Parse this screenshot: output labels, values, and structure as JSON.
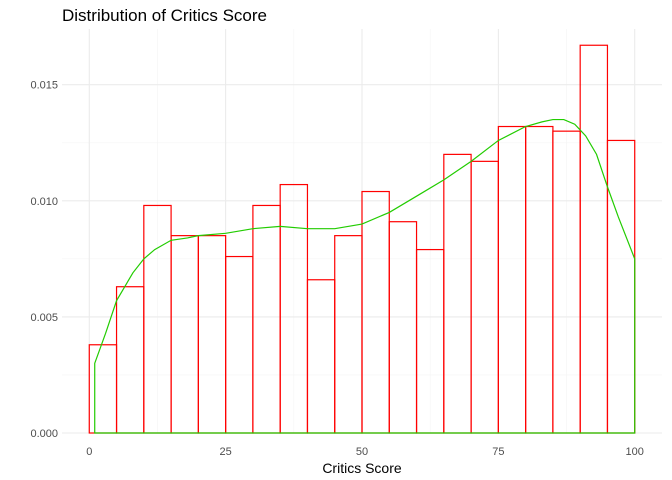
{
  "chart_data": {
    "type": "bar",
    "title": "Distribution of Critics Score",
    "xlabel": "Critics Score",
    "ylabel": "",
    "xlim": [
      -5,
      105
    ],
    "ylim": [
      0,
      0.0174
    ],
    "x_ticks": [
      0,
      25,
      50,
      75,
      100
    ],
    "x_tick_labels": [
      "0",
      "25",
      "50",
      "75",
      "100"
    ],
    "y_ticks": [
      0,
      0.005,
      0.01,
      0.015
    ],
    "y_tick_labels": [
      "0.000",
      "0.005",
      "0.010",
      "0.015"
    ],
    "grid": true,
    "histogram": {
      "bin_width": 5,
      "bin_starts": [
        0,
        5,
        10,
        15,
        20,
        25,
        30,
        35,
        40,
        45,
        50,
        55,
        60,
        65,
        70,
        75,
        80,
        85,
        90,
        95
      ],
      "values": [
        0.0038,
        0.0063,
        0.0098,
        0.0085,
        0.0085,
        0.0076,
        0.0098,
        0.0107,
        0.0066,
        0.0085,
        0.0104,
        0.0091,
        0.0079,
        0.012,
        0.0117,
        0.0132,
        0.0132,
        0.013,
        0.0167,
        0.0126
      ],
      "color": "#ff0000"
    },
    "density": {
      "x": [
        1,
        3,
        5,
        8,
        10,
        12,
        15,
        18,
        20,
        25,
        30,
        35,
        40,
        45,
        50,
        55,
        60,
        65,
        70,
        75,
        80,
        83,
        85,
        87,
        89,
        91,
        93,
        95,
        97,
        100
      ],
      "y": [
        0.003,
        0.0043,
        0.0057,
        0.0069,
        0.0075,
        0.0079,
        0.0083,
        0.0084,
        0.0085,
        0.0086,
        0.0088,
        0.0089,
        0.0088,
        0.0088,
        0.009,
        0.0095,
        0.0102,
        0.0109,
        0.0117,
        0.0126,
        0.0132,
        0.0134,
        0.0135,
        0.0135,
        0.0133,
        0.0128,
        0.012,
        0.0106,
        0.0093,
        0.0075
      ],
      "color": "#22cc00"
    }
  }
}
